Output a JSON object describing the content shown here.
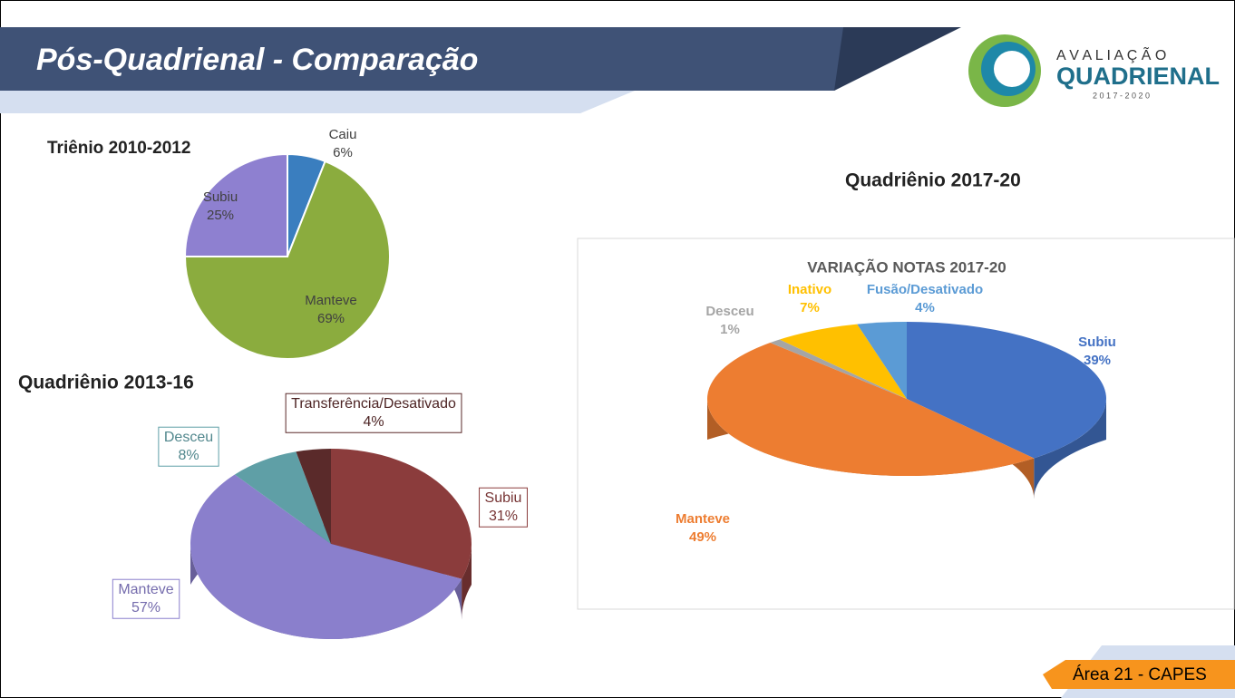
{
  "header": {
    "title": "Pós-Quadrienal - Comparação",
    "logo": [
      "A V A L I A Ç Ã O",
      "QUADRIENAL",
      "2 0 1 7  -  2 0 2 0"
    ]
  },
  "footer": "Área 21 - CAPES",
  "chart_data": [
    {
      "type": "pie",
      "title": "Triênio 2010-2012",
      "categories": [
        "Caiu",
        "Manteve",
        "Subiu"
      ],
      "values": [
        6,
        69,
        25
      ],
      "value_labels": [
        "6%",
        "69%",
        "25%"
      ],
      "colors": [
        "#3a7ebf",
        "#8bac3e",
        "#8e80d0"
      ]
    },
    {
      "type": "pie",
      "title": "Quadriênio 2013-16",
      "categories": [
        "Subiu",
        "Manteve",
        "Desceu",
        "Transferência/Desativado"
      ],
      "values": [
        31,
        57,
        8,
        4
      ],
      "value_labels": [
        "31%",
        "57%",
        "8%",
        "4%"
      ],
      "colors": [
        "#8b3c3c",
        "#8a7fcc",
        "#5f9fa6",
        "#5a2a2a"
      ]
    },
    {
      "type": "pie",
      "title": "Quadriênio 2017-20",
      "subtitle": "VARIAÇÃO NOTAS 2017-20",
      "categories": [
        "Subiu",
        "Manteve",
        "Desceu",
        "Inativo",
        "Fusão/Desativado"
      ],
      "values": [
        39,
        49,
        1,
        7,
        4
      ],
      "value_labels": [
        "39%",
        "49%",
        "1%",
        "7%",
        "4%"
      ],
      "colors": [
        "#4472c4",
        "#ed7d31",
        "#a5a5a5",
        "#ffc000",
        "#5b9bd5"
      ]
    }
  ]
}
